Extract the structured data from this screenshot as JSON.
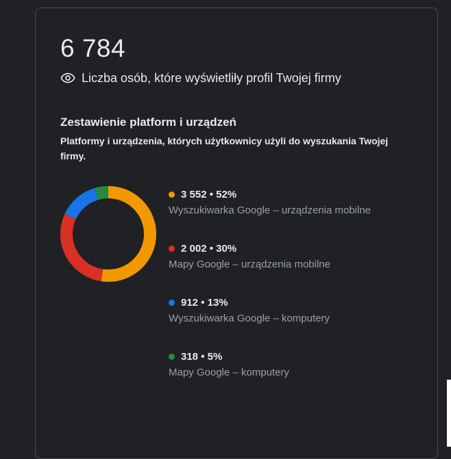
{
  "summary": {
    "total": "6 784",
    "description": "Liczba osób, które wyświetliły profil Twojej firmy",
    "icon": "eye-icon"
  },
  "breakdown": {
    "title": "Zestawienie platform i urządzeń",
    "description": "Platformy i urządzenia, których użytkownicy użyli do wyszukania Twojej firmy."
  },
  "chart_data": {
    "type": "pie",
    "title": "",
    "categories": [
      "Wyszukiwarka Google – urządzenia mobilne",
      "Mapy Google – urządzenia mobilne",
      "Wyszukiwarka Google – komputery",
      "Mapy Google – komputery"
    ],
    "values": [
      3552,
      2002,
      912,
      318
    ],
    "colors": [
      "#f29900",
      "#d93025",
      "#1a73e8",
      "#1e8e3e"
    ]
  },
  "legend": [
    {
      "value_text": "3 552 • 52%",
      "label": "Wyszukiwarka Google – urządzenia mobilne",
      "color": "#f29900"
    },
    {
      "value_text": "2 002 • 30%",
      "label": "Mapy Google – urządzenia mobilne",
      "color": "#d93025"
    },
    {
      "value_text": "912 • 13%",
      "label": "Wyszukiwarka Google – komputery",
      "color": "#1a73e8"
    },
    {
      "value_text": "318 • 5%",
      "label": "Mapy Google – komputery",
      "color": "#1e8e3e"
    }
  ]
}
